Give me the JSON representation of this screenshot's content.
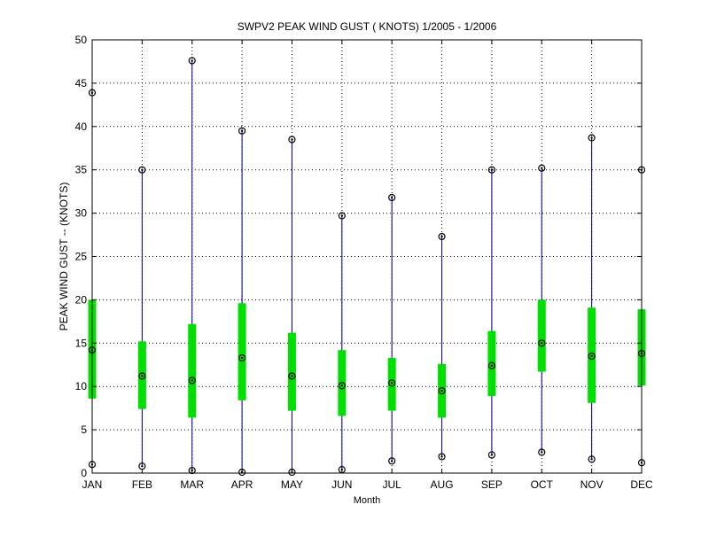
{
  "chart_data": {
    "type": "boxplot",
    "title": "SWPV2  PEAK WIND GUST ( KNOTS) 1/2005 - 1/2006",
    "xlabel": "Month",
    "ylabel": "PEAK WIND GUST -- (KNOTS)",
    "ylim": [
      0,
      50
    ],
    "yticks": [
      0,
      5,
      10,
      15,
      20,
      25,
      30,
      35,
      40,
      45,
      50
    ],
    "grid": true,
    "categories": [
      "JAN",
      "FEB",
      "MAR",
      "APR",
      "MAY",
      "JUN",
      "JUL",
      "AUG",
      "SEP",
      "OCT",
      "NOV",
      "DEC"
    ],
    "series": [
      {
        "min": [
          1.0,
          0.8,
          0.3,
          0.1,
          0.1,
          0.4,
          1.4,
          1.9,
          2.1,
          2.4,
          1.6,
          1.2
        ],
        "q1": [
          8.6,
          7.4,
          6.4,
          8.4,
          7.2,
          6.6,
          7.2,
          6.4,
          8.9,
          11.7,
          8.1,
          10.1
        ],
        "median": [
          14.2,
          11.2,
          10.7,
          13.3,
          11.2,
          10.1,
          10.4,
          9.5,
          12.4,
          15.0,
          13.5,
          13.8
        ],
        "q3": [
          20.0,
          15.2,
          17.2,
          19.6,
          16.2,
          14.2,
          13.3,
          12.6,
          16.4,
          20.0,
          19.1,
          18.9
        ],
        "max": [
          43.9,
          35.0,
          47.6,
          39.5,
          38.5,
          29.7,
          31.8,
          27.3,
          35.0,
          35.2,
          38.7,
          35.0
        ]
      }
    ],
    "colors": {
      "whisker": "#00008b",
      "box": "#00e000",
      "marker": "#000000",
      "grid": "#000000"
    }
  }
}
